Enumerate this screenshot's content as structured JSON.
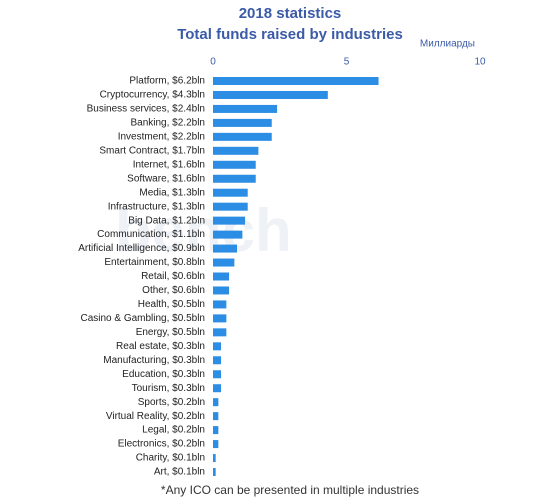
{
  "chart_data": {
    "type": "hbar",
    "title": "2018 statistics",
    "subtitle": "Total funds raised by industries",
    "x_label": "Миллиарды",
    "watermark": "bench",
    "note": "*Any ICO can be presented in multiple industries",
    "categories": [
      "Platform, $6.2bln",
      "Cryptocurrency, $4.3bln",
      "Business services, $2.4bln",
      "Banking, $2.2bln",
      "Investment, $2.2bln",
      "Smart Contract, $1.7bln",
      "Internet, $1.6bln",
      "Software, $1.6bln",
      "Media, $1.3bln",
      "Infrastructure, $1.3bln",
      "Big Data, $1.2bln",
      "Communication, $1.1bln",
      "Artificial Intelligence, $0.9bln",
      "Entertainment, $0.8bln",
      "Retail, $0.6bln",
      "Other, $0.6bln",
      "Health, $0.5bln",
      "Casino & Gambling, $0.5bln",
      "Energy, $0.5bln",
      "Real estate, $0.3bln",
      "Manufacturing, $0.3bln",
      "Education, $0.3bln",
      "Tourism, $0.3bln",
      "Sports, $0.2bln",
      "Virtual Reality, $0.2bln",
      "Legal, $0.2bln",
      "Electronics, $0.2bln",
      "Charity, $0.1bln",
      "Art, $0.1bln"
    ],
    "values": [
      6.2,
      4.3,
      2.4,
      2.2,
      2.2,
      1.7,
      1.6,
      1.6,
      1.3,
      1.3,
      1.2,
      1.1,
      0.9,
      0.8,
      0.6,
      0.6,
      0.5,
      0.5,
      0.5,
      0.3,
      0.3,
      0.3,
      0.3,
      0.2,
      0.2,
      0.2,
      0.2,
      0.1,
      0.1
    ],
    "color": "#2b8de4",
    "xlim": [
      0,
      10
    ],
    "xticks": [
      0,
      5,
      10
    ],
    "grid": false
  }
}
